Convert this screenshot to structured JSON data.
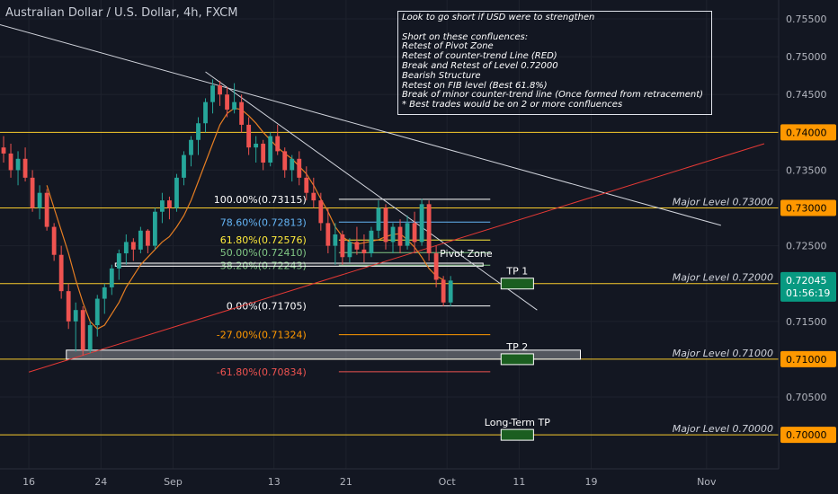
{
  "header": {
    "title": "Australian Dollar / U.S. Dollar, 4h, FXCM"
  },
  "notes": [
    "Look to go short if USD were to strengthen",
    "",
    "Short on these confluences:",
    "Retest of Pivot Zone",
    "Retest of counter-trend Line (RED)",
    "Break and Retest of Level 0.72000",
    "Bearish Structure",
    "Retest on FIB level (Best 61.8%)",
    "Break of minor counter-trend line (Once formed from retracement)",
    "* Best trades would be on 2 or more confluences"
  ],
  "colors": {
    "background": "#131722",
    "grid": "#1e222d",
    "bull": "#26a69a",
    "bear": "#ef5350",
    "level": "#f9cc2c",
    "tp_box": "#1b5e20",
    "price_tag": "#089981",
    "level_tag": "#ff9800"
  },
  "chart_data": {
    "type": "candlestick",
    "symbol": "AUDUSD",
    "timeframe": "4h",
    "ylim": [
      0.6955,
      0.7575
    ],
    "xlim": [
      0,
      108
    ],
    "x_ticks": [
      {
        "label": "16",
        "x": 4
      },
      {
        "label": "24",
        "x": 14
      },
      {
        "label": "Sep",
        "x": 24
      },
      {
        "label": "13",
        "x": 38
      },
      {
        "label": "21",
        "x": 48
      },
      {
        "label": "Oct",
        "x": 62
      },
      {
        "label": "11",
        "x": 72
      },
      {
        "label": "19",
        "x": 82
      },
      {
        "label": "Nov",
        "x": 98
      }
    ],
    "y_ticks": [
      {
        "label": "0.75500",
        "value": 0.755
      },
      {
        "label": "0.75000",
        "value": 0.75
      },
      {
        "label": "0.74500",
        "value": 0.745
      },
      {
        "label": "0.73500",
        "value": 0.735
      },
      {
        "label": "0.72500",
        "value": 0.725
      },
      {
        "label": "0.71500",
        "value": 0.715
      },
      {
        "label": "0.70500",
        "value": 0.705
      }
    ],
    "candles": [
      [
        0.738,
        0.7395,
        0.736,
        0.7372
      ],
      [
        0.7372,
        0.7385,
        0.734,
        0.735
      ],
      [
        0.735,
        0.7375,
        0.733,
        0.7365
      ],
      [
        0.7365,
        0.738,
        0.7335,
        0.734
      ],
      [
        0.734,
        0.735,
        0.7295,
        0.73
      ],
      [
        0.73,
        0.733,
        0.7285,
        0.732
      ],
      [
        0.732,
        0.7325,
        0.727,
        0.7275
      ],
      [
        0.7275,
        0.728,
        0.723,
        0.7238
      ],
      [
        0.7238,
        0.725,
        0.718,
        0.719
      ],
      [
        0.719,
        0.72,
        0.714,
        0.715
      ],
      [
        0.715,
        0.7175,
        0.711,
        0.7165
      ],
      [
        0.7165,
        0.717,
        0.7105,
        0.7112
      ],
      [
        0.7112,
        0.715,
        0.7108,
        0.7145
      ],
      [
        0.7145,
        0.7185,
        0.713,
        0.718
      ],
      [
        0.718,
        0.72,
        0.716,
        0.7195
      ],
      [
        0.7195,
        0.7225,
        0.7185,
        0.722
      ],
      [
        0.722,
        0.7245,
        0.7205,
        0.724
      ],
      [
        0.724,
        0.7265,
        0.7225,
        0.7255
      ],
      [
        0.7255,
        0.726,
        0.723,
        0.7245
      ],
      [
        0.7245,
        0.7275,
        0.724,
        0.727
      ],
      [
        0.727,
        0.7272,
        0.724,
        0.725
      ],
      [
        0.725,
        0.73,
        0.7245,
        0.7295
      ],
      [
        0.7295,
        0.732,
        0.728,
        0.731
      ],
      [
        0.731,
        0.7315,
        0.7285,
        0.73
      ],
      [
        0.73,
        0.7345,
        0.7295,
        0.734
      ],
      [
        0.734,
        0.7375,
        0.733,
        0.737
      ],
      [
        0.737,
        0.7395,
        0.7355,
        0.739
      ],
      [
        0.739,
        0.742,
        0.737,
        0.7412
      ],
      [
        0.7412,
        0.7445,
        0.74,
        0.744
      ],
      [
        0.744,
        0.747,
        0.7425,
        0.7462
      ],
      [
        0.7462,
        0.7468,
        0.7435,
        0.745
      ],
      [
        0.745,
        0.746,
        0.742,
        0.743
      ],
      [
        0.743,
        0.7465,
        0.7425,
        0.744
      ],
      [
        0.744,
        0.745,
        0.74,
        0.741
      ],
      [
        0.741,
        0.742,
        0.737,
        0.738
      ],
      [
        0.738,
        0.7395,
        0.736,
        0.7385
      ],
      [
        0.7385,
        0.739,
        0.735,
        0.736
      ],
      [
        0.736,
        0.74,
        0.7355,
        0.7395
      ],
      [
        0.7395,
        0.741,
        0.737,
        0.7375
      ],
      [
        0.7375,
        0.738,
        0.734,
        0.735
      ],
      [
        0.735,
        0.737,
        0.7335,
        0.7365
      ],
      [
        0.7365,
        0.7375,
        0.733,
        0.734
      ],
      [
        0.734,
        0.7355,
        0.731,
        0.732
      ],
      [
        0.732,
        0.734,
        0.73,
        0.731
      ],
      [
        0.731,
        0.732,
        0.727,
        0.728
      ],
      [
        0.728,
        0.73,
        0.724,
        0.725
      ],
      [
        0.725,
        0.728,
        0.7225,
        0.7265
      ],
      [
        0.7265,
        0.727,
        0.7225,
        0.7235
      ],
      [
        0.7235,
        0.726,
        0.7228,
        0.7255
      ],
      [
        0.7255,
        0.7275,
        0.7238,
        0.7245
      ],
      [
        0.7245,
        0.7265,
        0.7228,
        0.724
      ],
      [
        0.724,
        0.7275,
        0.7235,
        0.727
      ],
      [
        0.727,
        0.731,
        0.726,
        0.73
      ],
      [
        0.73,
        0.7305,
        0.7245,
        0.7255
      ],
      [
        0.7255,
        0.728,
        0.724,
        0.7275
      ],
      [
        0.7275,
        0.7285,
        0.724,
        0.725
      ],
      [
        0.725,
        0.729,
        0.7245,
        0.728
      ],
      [
        0.728,
        0.7295,
        0.724,
        0.7255
      ],
      [
        0.7255,
        0.7312,
        0.725,
        0.7305
      ],
      [
        0.7305,
        0.731,
        0.723,
        0.724
      ],
      [
        0.724,
        0.725,
        0.7195,
        0.7205
      ],
      [
        0.7205,
        0.721,
        0.717,
        0.7175
      ],
      [
        0.7175,
        0.721,
        0.717,
        0.7204
      ]
    ],
    "ma_start_x": 6,
    "ma_values": [
      0.733,
      0.73,
      0.727,
      0.724,
      0.7205,
      0.7175,
      0.715,
      0.714,
      0.7145,
      0.716,
      0.7175,
      0.7195,
      0.721,
      0.7225,
      0.7235,
      0.7245,
      0.7255,
      0.7262,
      0.7275,
      0.729,
      0.731,
      0.7335,
      0.736,
      0.7385,
      0.741,
      0.7425,
      0.7432,
      0.743,
      0.7422,
      0.7412,
      0.74,
      0.739,
      0.738,
      0.7372,
      0.7365,
      0.7355,
      0.7345,
      0.733,
      0.7312,
      0.7295,
      0.7275,
      0.7262,
      0.7255,
      0.7252,
      0.7254,
      0.7256,
      0.7258,
      0.7262,
      0.7265,
      0.7266,
      0.7258,
      0.7248,
      0.7235,
      0.722,
      0.721,
      0.7205
    ],
    "trendlines": [
      {
        "x1": -1,
        "y1": 0.7545,
        "x2": 100,
        "y2": 0.7277,
        "color": "#d1d4dc"
      },
      {
        "x1": 28.5,
        "y1": 0.748,
        "x2": 74.5,
        "y2": 0.7165,
        "color": "#d1d4dc"
      },
      {
        "x1": 4,
        "y1": 0.7083,
        "x2": 106,
        "y2": 0.7385,
        "color": "#e53935"
      }
    ],
    "horizontal_levels": [
      {
        "value": 0.74,
        "label": "",
        "tag": "0.74000"
      },
      {
        "value": 0.73,
        "label": "Major Level 0.73000",
        "tag": "0.73000"
      },
      {
        "value": 0.72,
        "label": "Major Level 0.72000",
        "tag": "0.72000"
      },
      {
        "value": 0.71,
        "label": "Major Level 0.71000",
        "tag": "0.71000"
      },
      {
        "value": 0.7,
        "label": "Major Level 0.70000",
        "tag": "0.70000"
      }
    ],
    "current_price": {
      "value": 0.72045,
      "label": "0.72045",
      "countdown": "01:56:19"
    },
    "fib_levels": [
      {
        "value": 0.73115,
        "label": "100.00%(0.73115)",
        "color": "#ffffff"
      },
      {
        "value": 0.72813,
        "label": "78.60%(0.72813)",
        "color": "#64b5f6"
      },
      {
        "value": 0.72576,
        "label": "61.80%(0.72576)",
        "color": "#ffeb3b"
      },
      {
        "value": 0.7241,
        "label": "50.00%(0.72410)",
        "color": "#81c784"
      },
      {
        "value": 0.72243,
        "label": "38.20%(0.72243)",
        "color": "#81c784"
      },
      {
        "value": 0.71705,
        "label": "0.00%(0.71705)",
        "color": "#ffffff"
      },
      {
        "value": 0.71324,
        "label": "-27.00%(0.71324)",
        "color": "#ff9800"
      },
      {
        "value": 0.70834,
        "label": "-61.80%(0.70834)",
        "color": "#ef5350"
      }
    ],
    "zones": [
      {
        "name": "Pivot Zone",
        "y1": 0.7227,
        "y2": 0.7223
      },
      {
        "name": "",
        "y1": 0.7112,
        "y2": 0.71
      }
    ],
    "targets": [
      {
        "label": "TP 1",
        "value": 0.72
      },
      {
        "label": "TP 2",
        "value": 0.71
      },
      {
        "label": "Long-Term TP",
        "value": 0.7
      }
    ]
  }
}
